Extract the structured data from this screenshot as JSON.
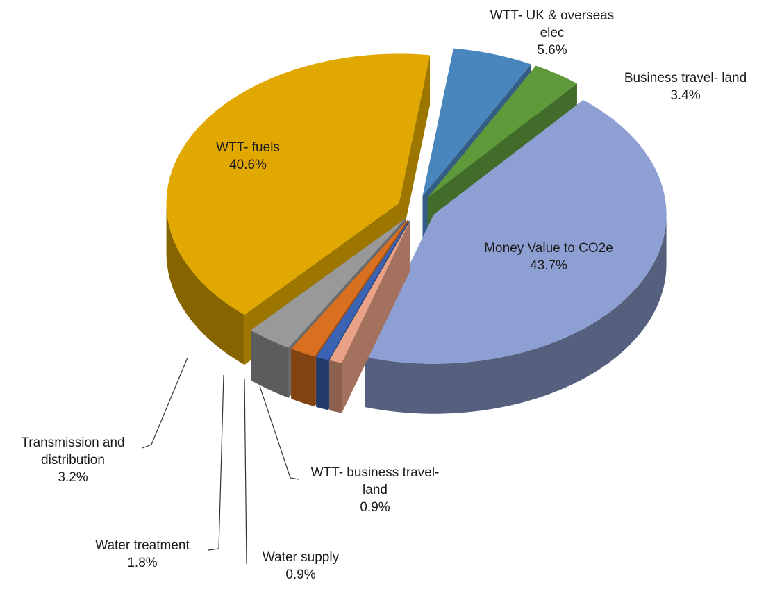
{
  "chart_data": {
    "type": "pie",
    "categories": [
      "Money Value to CO2e",
      "WTT- business travel- land",
      "Water supply",
      "Water treatment",
      "Transmission and distribution",
      "WTT- fuels",
      "WTT- UK & overseas elec",
      "Business travel- land"
    ],
    "values": [
      43.7,
      0.9,
      0.9,
      1.8,
      3.2,
      40.6,
      5.6,
      3.4
    ],
    "value_labels": [
      "43.7%",
      "0.9%",
      "0.9%",
      "1.8%",
      "3.2%",
      "40.6%",
      "5.6%",
      "3.4%"
    ],
    "colors": [
      "#8EA0D3",
      "#E9A286",
      "#3B63B3",
      "#D9701F",
      "#999999",
      "#E0A800",
      "#4A86BE",
      "#5E9A3A"
    ]
  }
}
